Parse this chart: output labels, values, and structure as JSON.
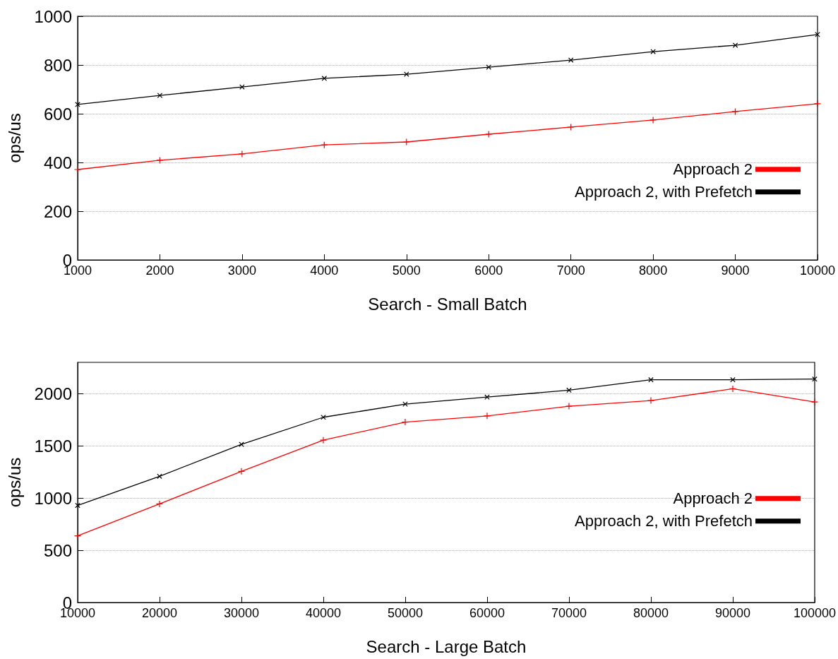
{
  "chart_data": [
    {
      "type": "line",
      "xlabel": "Search - Small Batch",
      "ylabel": "ops/us",
      "x": [
        1000,
        2000,
        3000,
        4000,
        5000,
        6000,
        7000,
        8000,
        9000,
        10000
      ],
      "xlim": [
        1000,
        10000
      ],
      "xticks": [
        1000,
        2000,
        3000,
        4000,
        5000,
        6000,
        7000,
        8000,
        9000,
        10000
      ],
      "ylim": [
        0,
        1000
      ],
      "yticks": [
        0,
        200,
        400,
        600,
        800,
        1000
      ],
      "grid": "y",
      "legend": "right",
      "line_style": "solid",
      "series": [
        {
          "name": "Approach 2",
          "color": "#ff0000",
          "marker": "cross",
          "values": [
            371,
            409,
            435,
            472,
            484,
            516,
            545,
            574,
            609,
            641
          ]
        },
        {
          "name": "Approach 2, with Prefetch",
          "color": "#000000",
          "marker": "cross",
          "values": [
            638,
            675,
            710,
            745,
            762,
            791,
            820,
            855,
            881,
            925
          ]
        }
      ]
    },
    {
      "type": "line",
      "xlabel": "Search - Large Batch",
      "ylabel": "ops/us",
      "x": [
        10000,
        20000,
        30000,
        40000,
        50000,
        60000,
        70000,
        80000,
        90000,
        100000
      ],
      "xlim": [
        10000,
        100000
      ],
      "xticks": [
        10000,
        20000,
        30000,
        40000,
        50000,
        60000,
        70000,
        80000,
        90000,
        100000
      ],
      "ylim": [
        0,
        2300
      ],
      "yticks": [
        0,
        500,
        1000,
        1500,
        2000
      ],
      "grid": "y",
      "legend": "right",
      "line_style": "solid",
      "series": [
        {
          "name": "Approach 2",
          "color": "#ff0000",
          "marker": "cross",
          "values": [
            638,
            944,
            1256,
            1555,
            1728,
            1787,
            1880,
            1934,
            2047,
            1920
          ]
        },
        {
          "name": "Approach 2, with Prefetch",
          "color": "#000000",
          "marker": "cross",
          "values": [
            930,
            1209,
            1515,
            1774,
            1900,
            1967,
            2033,
            2133,
            2133,
            2140
          ]
        }
      ]
    }
  ]
}
